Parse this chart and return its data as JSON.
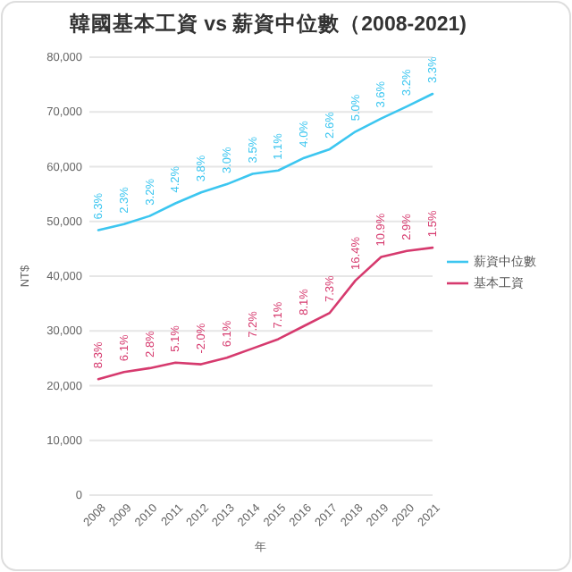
{
  "chart_data": {
    "type": "line",
    "title": "韓國基本工資 vs 薪資中位數（2008-2021)",
    "xlabel": "年",
    "ylabel": "NT$",
    "categories": [
      "2008",
      "2009",
      "2010",
      "2011",
      "2012",
      "2013",
      "2014",
      "2015",
      "2016",
      "2017",
      "2018",
      "2019",
      "2020",
      "2021"
    ],
    "series": [
      {
        "name": "薪資中位數",
        "color": "#3cc6f0",
        "values": [
          48400,
          49500,
          51000,
          53300,
          55300,
          56800,
          58700,
          59300,
          61600,
          63200,
          66400,
          68800,
          71000,
          73300
        ]
      },
      {
        "name": "基本工資",
        "color": "#d63a6e",
        "values": [
          21200,
          22500,
          23200,
          24200,
          23900,
          25100,
          26800,
          28500,
          30900,
          33300,
          39200,
          43500,
          44600,
          45200
        ]
      }
    ],
    "annotations": [
      {
        "text": "6.3%",
        "x": "2008",
        "y": 48400
      },
      {
        "text": "2.3%",
        "x": "2009",
        "y": 49500
      },
      {
        "text": "3.2%",
        "x": "2010",
        "y": 51000
      },
      {
        "text": "4.2%",
        "x": "2011",
        "y": 53300
      },
      {
        "text": "3.8%",
        "x": "2012",
        "y": 55300
      },
      {
        "text": "3.0%",
        "x": "2013",
        "y": 56800
      },
      {
        "text": "3.5%",
        "x": "2014",
        "y": 58700
      },
      {
        "text": "1.1%",
        "x": "2015",
        "y": 59300
      },
      {
        "text": "4.0%",
        "x": "2016",
        "y": 61600
      },
      {
        "text": "2.6%",
        "x": "2017",
        "y": 63200
      },
      {
        "text": "5.0%",
        "x": "2018",
        "y": 66400
      },
      {
        "text": "3.6%",
        "x": "2019",
        "y": 68800
      },
      {
        "text": "3.2%",
        "x": "2020",
        "y": 71000
      },
      {
        "text": "3.3%",
        "x": "2021",
        "y": 73300
      },
      {
        "text": "8.3%",
        "x": "2008",
        "y": 21200
      },
      {
        "text": "6.1%",
        "x": "2009",
        "y": 22500
      },
      {
        "text": "2.8%",
        "x": "2010",
        "y": 23200
      },
      {
        "text": "5.1%",
        "x": "2011",
        "y": 24200
      },
      {
        "text": "-2.0%",
        "x": "2012",
        "y": 23900
      },
      {
        "text": "6.1%",
        "x": "2013",
        "y": 25100
      },
      {
        "text": "7.2%",
        "x": "2014",
        "y": 26800
      },
      {
        "text": "7.1%",
        "x": "2015",
        "y": 28500
      },
      {
        "text": "8.1%",
        "x": "2016",
        "y": 30900
      },
      {
        "text": "7.3%",
        "x": "2017",
        "y": 33300
      },
      {
        "text": "16.4%",
        "x": "2018",
        "y": 39200
      },
      {
        "text": "10.9%",
        "x": "2019",
        "y": 43500
      },
      {
        "text": "2.9%",
        "x": "2020",
        "y": 44600
      },
      {
        "text": "1.5%",
        "x": "2021",
        "y": 45200
      }
    ],
    "ylim": [
      0,
      80000
    ],
    "yticks": [
      {
        "value": 0,
        "label": "0"
      },
      {
        "value": 10000,
        "label": "10,000"
      },
      {
        "value": 20000,
        "label": "20,000"
      },
      {
        "value": 30000,
        "label": "30,000"
      },
      {
        "value": 40000,
        "label": "40,000"
      },
      {
        "value": 50000,
        "label": "50,000"
      },
      {
        "value": 60000,
        "label": "60,000"
      },
      {
        "value": 70000,
        "label": "70,000"
      },
      {
        "value": 80000,
        "label": "80,000"
      }
    ],
    "grid": "y",
    "legend": "right",
    "marker": "none",
    "line_style": "solid"
  }
}
